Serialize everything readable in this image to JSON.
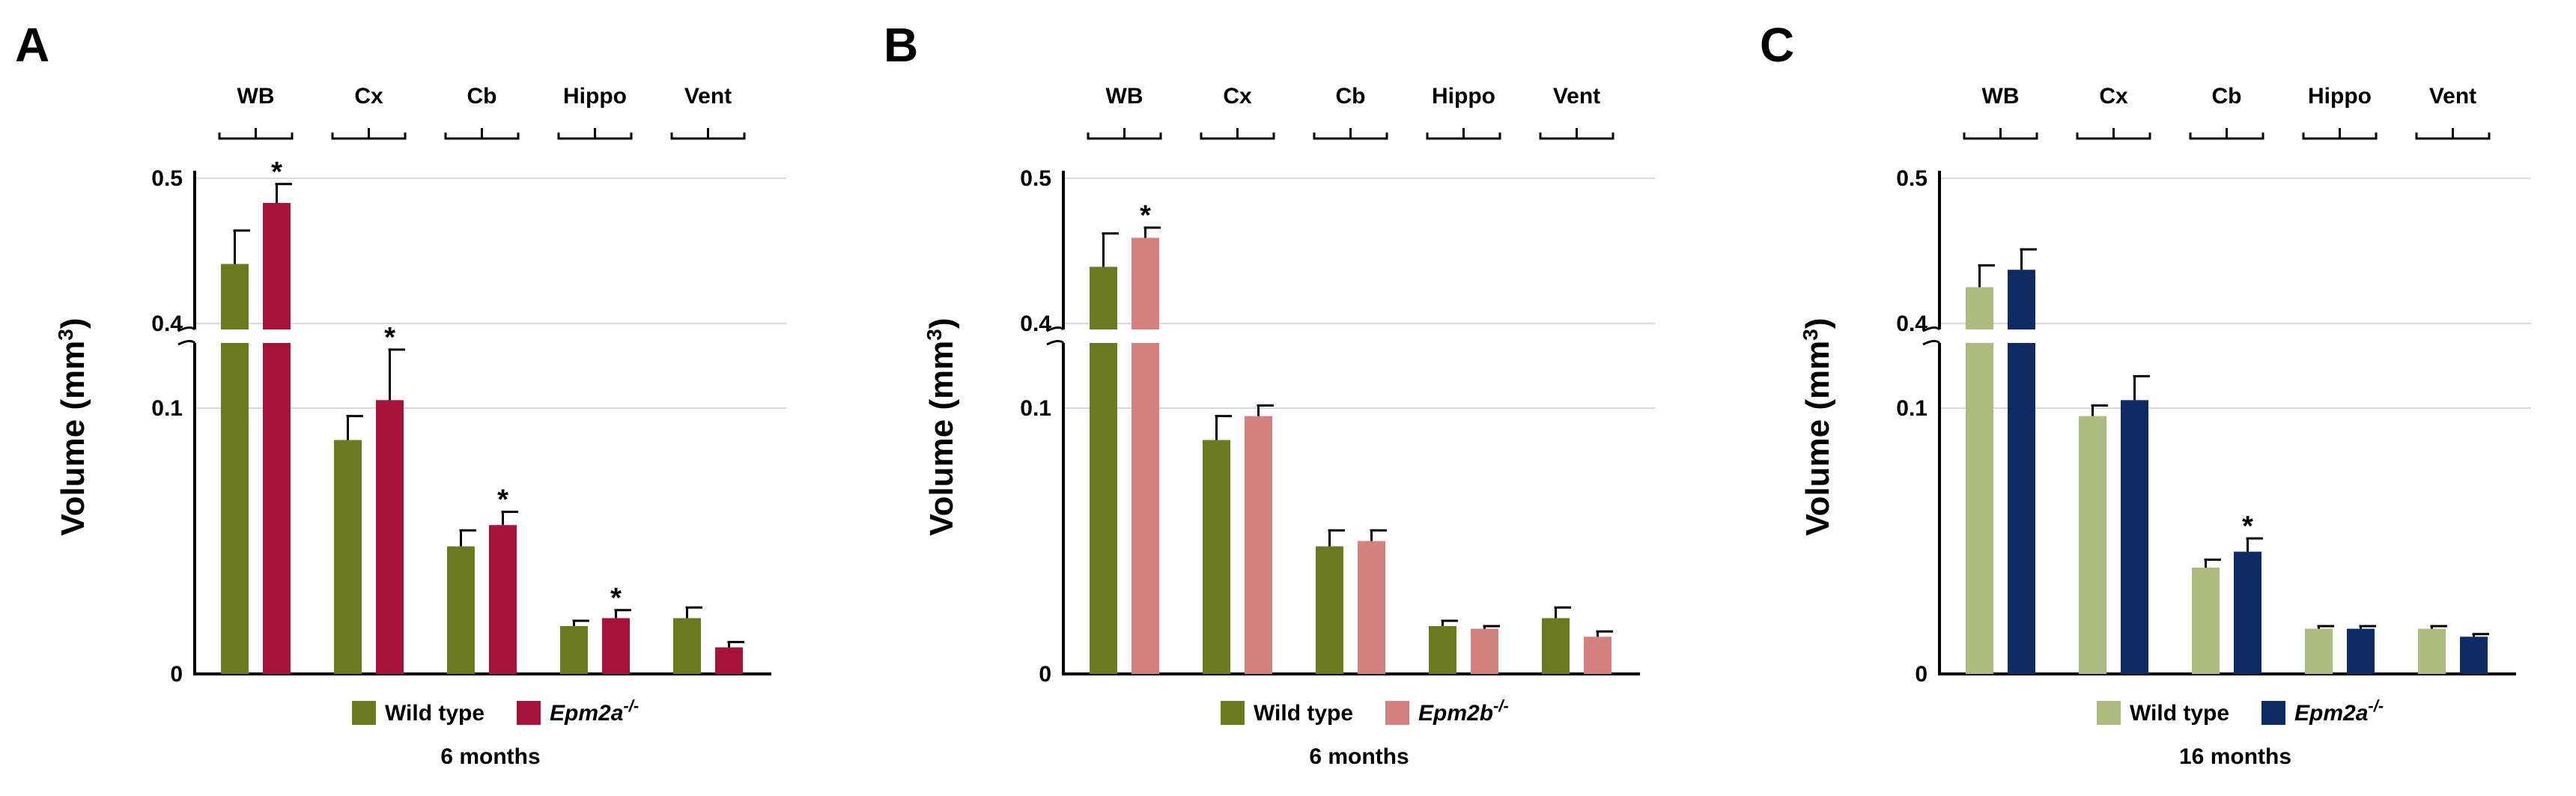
{
  "chart_data": [
    {
      "panel": "A",
      "type": "bar",
      "categories": [
        "WB",
        "Cx",
        "Cb",
        "Hippo",
        "Vent"
      ],
      "series": [
        {
          "name": "Wild type",
          "color": "#6b7a1f",
          "values": [
            0.441,
            0.088,
            0.048,
            0.018,
            0.021
          ],
          "errors": [
            0.023,
            0.009,
            0.006,
            0.002,
            0.004
          ]
        },
        {
          "name": "Epm2a",
          "name_sup": "-/-",
          "color": "#a6123a",
          "values": [
            0.483,
            0.103,
            0.056,
            0.021,
            0.01
          ],
          "errors": [
            0.013,
            0.019,
            0.005,
            0.003,
            0.002
          ]
        }
      ],
      "significant": [
        [],
        [],
        [],
        [],
        [],
        [
          true,
          true,
          true,
          true,
          false
        ]
      ],
      "ylabel": "Volume (mm",
      "ylabel_sup": "3",
      "ylabel_end": ")",
      "y_break": true,
      "lower_range": [
        0,
        0.1
      ],
      "upper_range": [
        0.4,
        0.5
      ],
      "yticks_lower": [
        "0",
        "0.1"
      ],
      "yticks_upper": [
        "0.4",
        "0.5"
      ],
      "legend_title": "6 months"
    },
    {
      "panel": "B",
      "type": "bar",
      "categories": [
        "WB",
        "Cx",
        "Cb",
        "Hippo",
        "Vent"
      ],
      "series": [
        {
          "name": "Wild type",
          "color": "#6b7a1f",
          "values": [
            0.439,
            0.088,
            0.048,
            0.018,
            0.021
          ],
          "errors": [
            0.023,
            0.009,
            0.006,
            0.002,
            0.004
          ]
        },
        {
          "name": "Epm2b",
          "name_sup": "-/-",
          "color": "#d4807f",
          "values": [
            0.459,
            0.097,
            0.05,
            0.017,
            0.014
          ],
          "errors": [
            0.007,
            0.004,
            0.004,
            0.001,
            0.002
          ]
        }
      ],
      "significant": [
        [],
        [],
        [],
        [],
        [],
        [
          true,
          false,
          false,
          false,
          false
        ]
      ],
      "ylabel": "Volume (mm",
      "ylabel_sup": "3",
      "ylabel_end": ")",
      "y_break": true,
      "lower_range": [
        0,
        0.1
      ],
      "upper_range": [
        0.4,
        0.5
      ],
      "yticks_lower": [
        "0",
        "0.1"
      ],
      "yticks_upper": [
        "0.4",
        "0.5"
      ],
      "legend_title": "6 months"
    },
    {
      "panel": "C",
      "type": "bar",
      "categories": [
        "WB",
        "Cx",
        "Cb",
        "Hippo",
        "Vent"
      ],
      "series": [
        {
          "name": "Wild type",
          "color": "#adbb7e",
          "values": [
            0.425,
            0.097,
            0.04,
            0.017,
            0.017
          ],
          "errors": [
            0.015,
            0.004,
            0.003,
            0.001,
            0.001
          ]
        },
        {
          "name": "Epm2a",
          "name_sup": "-/-",
          "color": "#0f2b63",
          "values": [
            0.437,
            0.103,
            0.046,
            0.017,
            0.014
          ],
          "errors": [
            0.014,
            0.009,
            0.005,
            0.001,
            0.001
          ]
        }
      ],
      "significant": [
        [],
        [],
        [],
        [],
        [],
        [
          false,
          false,
          true,
          false,
          false
        ]
      ],
      "ylabel": "Volume (mm",
      "ylabel_sup": "3",
      "ylabel_end": ")",
      "y_break": true,
      "lower_range": [
        0,
        0.1
      ],
      "upper_range": [
        0.4,
        0.5
      ],
      "yticks_lower": [
        "0",
        "0.1"
      ],
      "yticks_upper": [
        "0.4",
        "0.5"
      ],
      "legend_title": "16 months"
    }
  ],
  "significance_symbol": "*",
  "superscript_text": "-/-",
  "colors": {
    "axis": "#000000",
    "grid": "#d9d9d9"
  }
}
